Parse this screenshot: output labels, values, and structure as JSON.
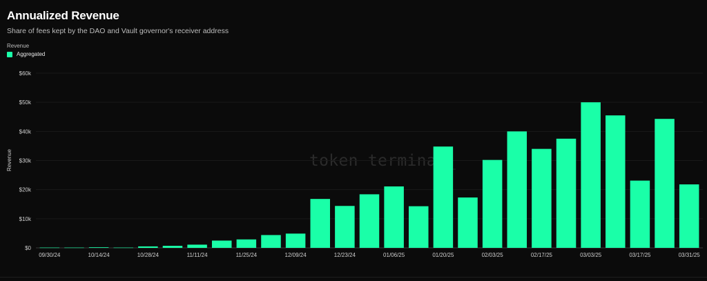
{
  "title": "Annualized Revenue",
  "subtitle": "Share of fees kept by the DAO and Vault governor's receiver address",
  "legend": {
    "title": "Revenue",
    "items": [
      {
        "label": "Aggregated",
        "color": "#1affa8"
      }
    ]
  },
  "watermark": "token terminal_",
  "chart_data": {
    "type": "bar",
    "ylabel": "Revenue",
    "xlabel": "",
    "ylim": [
      0,
      60000
    ],
    "yticks": [
      "$0",
      "$10k",
      "$20k",
      "$30k",
      "$40k",
      "$50k",
      "$60k"
    ],
    "xtick_labels": [
      "09/30/24",
      "10/14/24",
      "10/28/24",
      "11/11/24",
      "11/25/24",
      "12/09/24",
      "12/23/24",
      "01/06/25",
      "01/20/25",
      "02/03/25",
      "02/17/25",
      "03/03/25",
      "03/17/25",
      "03/31/25"
    ],
    "categories": [
      "09/30/24",
      "10/07/24",
      "10/14/24",
      "10/21/24",
      "10/28/24",
      "11/04/24",
      "11/11/24",
      "11/18/24",
      "11/25/24",
      "12/02/24",
      "12/09/24",
      "12/16/24",
      "12/23/24",
      "12/30/24",
      "01/06/25",
      "01/13/25",
      "01/20/25",
      "01/27/25",
      "02/03/25",
      "02/10/25",
      "02/17/25",
      "02/24/25",
      "03/03/25",
      "03/10/25",
      "03/17/25",
      "03/24/25",
      "03/31/25"
    ],
    "series": [
      {
        "name": "Aggregated",
        "color": "#1affa8",
        "values": [
          100,
          100,
          200,
          100,
          500,
          700,
          1100,
          2500,
          2900,
          4400,
          4900,
          16800,
          14400,
          18400,
          21100,
          14300,
          34800,
          17300,
          30200,
          40000,
          34000,
          37500,
          50000,
          45500,
          23100,
          44300,
          21800
        ]
      }
    ],
    "grid": true,
    "legend_position": "top-left"
  }
}
